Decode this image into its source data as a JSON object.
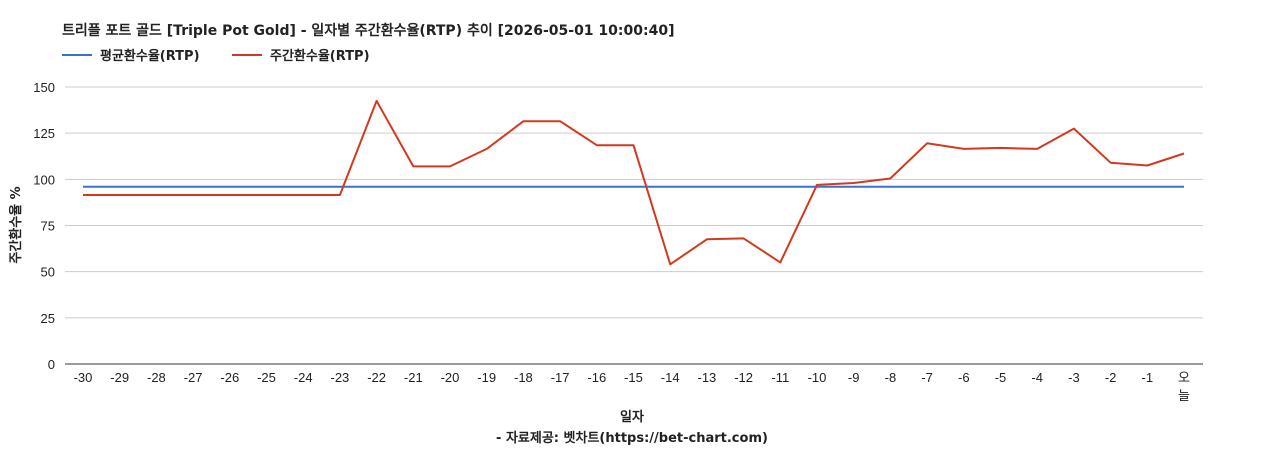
{
  "chart_data": {
    "type": "line",
    "title": "트리플 포트 골드 [Triple Pot Gold] - 일자별 주간환수율(RTP) 추이 [2026-05-01 10:00:40]",
    "xlabel": "일자",
    "ylabel": "주간환수율 %",
    "source": "- 자료제공: 벳차트(https://bet-chart.com)",
    "categories": [
      "-30",
      "-29",
      "-28",
      "-27",
      "-26",
      "-25",
      "-24",
      "-23",
      "-22",
      "-21",
      "-20",
      "-19",
      "-18",
      "-17",
      "-16",
      "-15",
      "-14",
      "-13",
      "-12",
      "-11",
      "-10",
      "-9",
      "-8",
      "-7",
      "-6",
      "-5",
      "-4",
      "-3",
      "-2",
      "-1",
      "오늘"
    ],
    "yticks": [
      "0",
      "25",
      "50",
      "75",
      "100",
      "125",
      "150"
    ],
    "ylim": [
      0,
      150
    ],
    "grid": true,
    "legend_position": "top-left",
    "series": [
      {
        "name": "평균환수율(RTP)",
        "color": "#3d6fd1",
        "values": [
          96,
          96,
          96,
          96,
          96,
          96,
          96,
          96,
          96,
          96,
          96,
          96,
          96,
          96,
          96,
          96,
          96,
          96,
          96,
          96,
          96,
          96,
          96,
          96,
          96,
          96,
          96,
          96,
          96,
          96,
          96
        ]
      },
      {
        "name": "주간환수율(RTP)",
        "color": "#d23a1f",
        "values": [
          91.5,
          91.5,
          91.5,
          91.5,
          91.5,
          91.5,
          91.5,
          91.5,
          142.5,
          107,
          107,
          116.5,
          131.5,
          131.5,
          118.5,
          118.5,
          54,
          67.5,
          68,
          55,
          97,
          98,
          100.5,
          119.5,
          116.5,
          117,
          116.5,
          127.5,
          109,
          107.5,
          114
        ]
      }
    ]
  }
}
